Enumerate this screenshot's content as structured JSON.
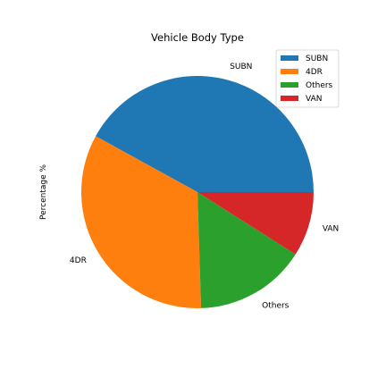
{
  "chart_data": {
    "type": "pie",
    "title": "Vehicle Body Type",
    "ylabel": "Percentage %",
    "categories": [
      "SUBN",
      "4DR",
      "Others",
      "VAN"
    ],
    "values": [
      42.0,
      33.5,
      15.5,
      9.0
    ],
    "colors": [
      "#1f77b4",
      "#ff7f0e",
      "#2ca02c",
      "#d62728"
    ],
    "start_angle_deg": 0,
    "direction": "counterclockwise",
    "legend": {
      "placement": "top-right",
      "entries": [
        "SUBN",
        "4DR",
        "Others",
        "VAN"
      ]
    }
  }
}
